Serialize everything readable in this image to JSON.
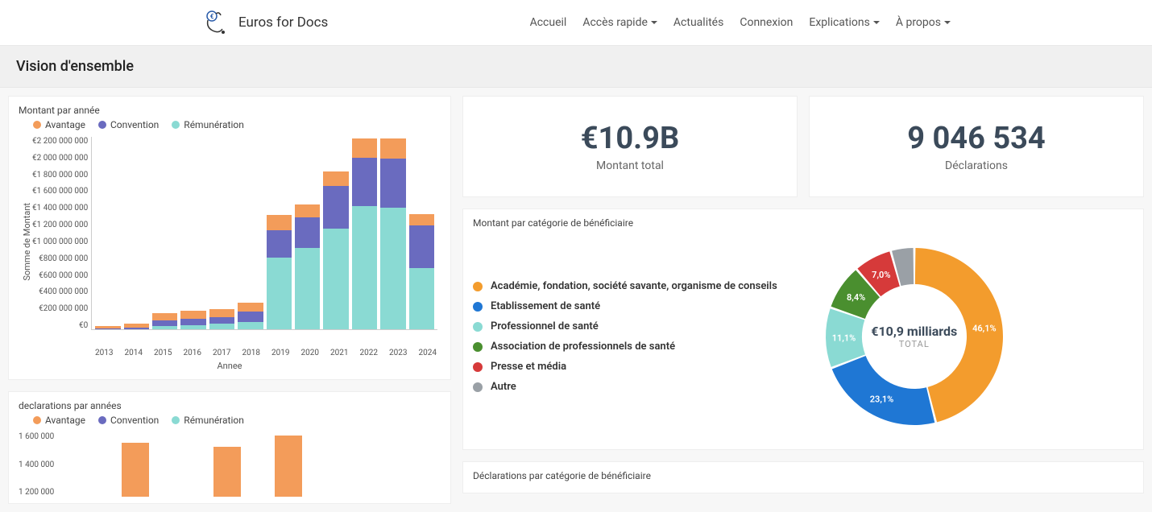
{
  "brand": "Euros for Docs",
  "nav": {
    "items": [
      {
        "label": "Accueil",
        "dropdown": false
      },
      {
        "label": "Accès rapide",
        "dropdown": true
      },
      {
        "label": "Actualités",
        "dropdown": false
      },
      {
        "label": "Connexion",
        "dropdown": false
      },
      {
        "label": "Explications",
        "dropdown": true
      },
      {
        "label": "À propos",
        "dropdown": true
      }
    ]
  },
  "page_title": "Vision d'ensemble",
  "kpi": {
    "amount_value": "€10.9B",
    "amount_label": "Montant total",
    "decl_value": "9 046 534",
    "decl_label": "Déclarations"
  },
  "colors": {
    "avantage": "#f39c5a",
    "convention": "#6a6bbf",
    "remuneration": "#8adad3",
    "donut": {
      "academie": "#f39c2d",
      "etablissement": "#1f77d4",
      "professionnel": "#8adad3",
      "association": "#4a8f2f",
      "presse": "#d63a3a",
      "autre": "#9aa0a6"
    }
  },
  "chart1": {
    "title": "Montant par année",
    "legend": [
      "Avantage",
      "Convention",
      "Rémunération"
    ],
    "y_axis_label": "Somme de Montant",
    "x_axis_label": "Annee",
    "ylim": [
      0,
      2200000000
    ],
    "ytick_labels": [
      "€2 200 000 000",
      "€2 000 000 000",
      "€1 800 000 000",
      "€1 600 000 000",
      "€1 400 000 000",
      "€1 200 000 000",
      "€1 000 000 000",
      "€800 000 000",
      "€600 000 000",
      "€400 000 000",
      "€200 000 000",
      "€0"
    ],
    "categories": [
      "2013",
      "2014",
      "2015",
      "2016",
      "2017",
      "2018",
      "2019",
      "2020",
      "2021",
      "2022",
      "2023",
      "2024"
    ],
    "series": {
      "remuneration": [
        0,
        0,
        40000000,
        50000000,
        60000000,
        80000000,
        820000000,
        930000000,
        1150000000,
        1400000000,
        1380000000,
        700000000
      ],
      "convention": [
        10000000,
        20000000,
        60000000,
        70000000,
        80000000,
        120000000,
        310000000,
        340000000,
        480000000,
        550000000,
        560000000,
        480000000
      ],
      "avantage": [
        30000000,
        40000000,
        80000000,
        90000000,
        90000000,
        100000000,
        170000000,
        150000000,
        170000000,
        220000000,
        230000000,
        130000000
      ]
    }
  },
  "chart2": {
    "title": "declarations par années",
    "legend": [
      "Avantage",
      "Convention",
      "Rémunération"
    ],
    "ytick_labels": [
      "1 600 000",
      "1 400 000",
      "1 200 000"
    ],
    "categories": [
      "",
      "",
      "",
      "",
      "",
      "",
      "",
      ""
    ],
    "values": [
      0,
      0,
      1500000,
      0,
      0,
      1400000,
      0,
      1700000
    ]
  },
  "donut": {
    "title": "Montant par catégorie de bénéficiaire",
    "center_value": "€10,9 milliards",
    "center_label": "TOTAL",
    "slices": [
      {
        "label": "Académie, fondation, société savante, organisme de conseils",
        "pct": 46.1,
        "color": "#f39c2d",
        "show_pct": "46,1%"
      },
      {
        "label": "Etablissement de santé",
        "pct": 23.1,
        "color": "#1f77d4",
        "show_pct": "23,1%"
      },
      {
        "label": "Professionnel de santé",
        "pct": 11.1,
        "color": "#8adad3",
        "show_pct": "11,1%"
      },
      {
        "label": "Association de professionnels de santé",
        "pct": 8.4,
        "color": "#4a8f2f",
        "show_pct": "8,4%"
      },
      {
        "label": "Presse et média",
        "pct": 7.0,
        "color": "#d63a3a",
        "show_pct": "7,0%"
      },
      {
        "label": "Autre",
        "pct": 4.3,
        "color": "#9aa0a6",
        "show_pct": ""
      }
    ]
  },
  "section2_title": "Déclarations par catégorie de bénéficiaire"
}
